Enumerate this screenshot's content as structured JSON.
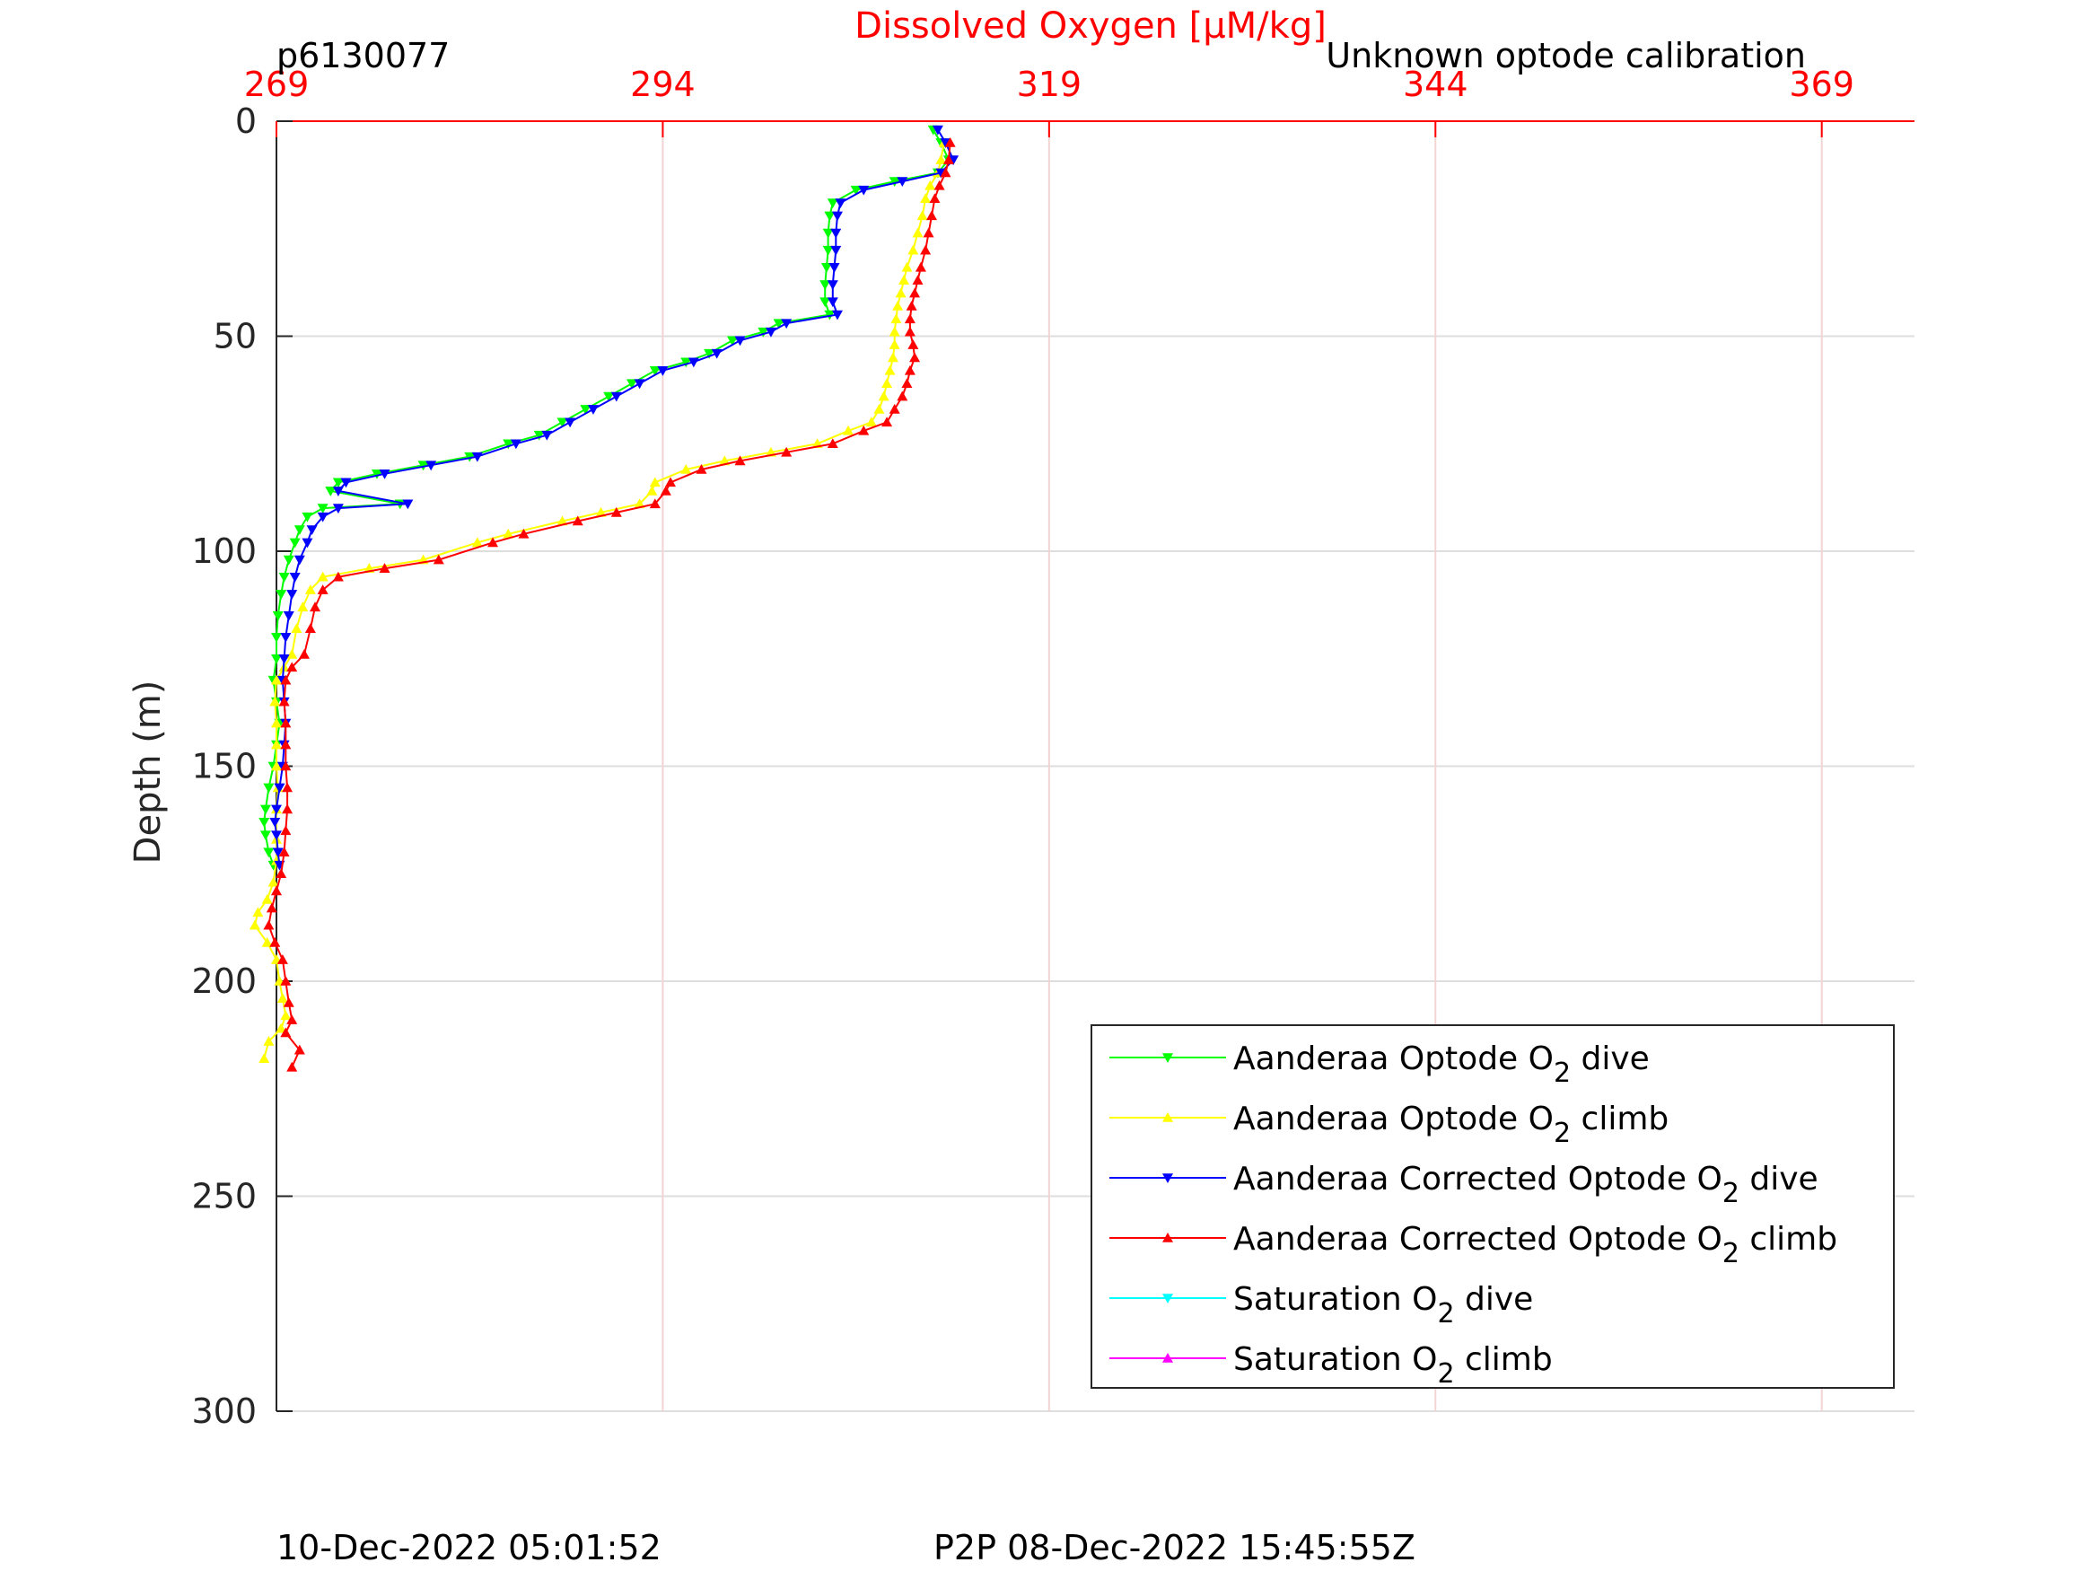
{
  "chart_data": {
    "type": "line",
    "title": "Dissolved Oxygen [μM/kg]",
    "top_left_label": "p6130077",
    "top_right_label": "Unknown optode calibration",
    "ylabel": "Depth (m)",
    "xlabel": "",
    "x_axis_position": "top",
    "y_reversed": true,
    "xlim": [
      269,
      375
    ],
    "ylim": [
      0,
      300
    ],
    "xticks": [
      269,
      294,
      319,
      344,
      369
    ],
    "yticks": [
      0,
      50,
      100,
      150,
      200,
      250,
      300
    ],
    "grid": true,
    "legend_position": "bottom-right",
    "series": [
      {
        "name": "Aanderaa Optode O2 dive",
        "legend_main": "Aanderaa Optode O",
        "legend_sub": "2",
        "legend_tail": " dive",
        "color": "#00ff00",
        "marker": "triangle-down",
        "points": [
          [
            311.5,
            2
          ],
          [
            312.0,
            5
          ],
          [
            312.5,
            9
          ],
          [
            311.8,
            12
          ],
          [
            309.0,
            14
          ],
          [
            306.5,
            16
          ],
          [
            305.0,
            19
          ],
          [
            304.8,
            22
          ],
          [
            304.7,
            26
          ],
          [
            304.7,
            30
          ],
          [
            304.6,
            34
          ],
          [
            304.5,
            38
          ],
          [
            304.5,
            42
          ],
          [
            304.8,
            45
          ],
          [
            301.5,
            47
          ],
          [
            300.5,
            49
          ],
          [
            298.5,
            51
          ],
          [
            297.0,
            54
          ],
          [
            295.5,
            56
          ],
          [
            293.5,
            58
          ],
          [
            292.0,
            61
          ],
          [
            290.5,
            64
          ],
          [
            289.0,
            67
          ],
          [
            287.5,
            70
          ],
          [
            286.0,
            73
          ],
          [
            284.0,
            75
          ],
          [
            281.5,
            78
          ],
          [
            278.5,
            80
          ],
          [
            275.5,
            82
          ],
          [
            273.0,
            84
          ],
          [
            272.5,
            86
          ],
          [
            277.0,
            89
          ],
          [
            272.0,
            90
          ],
          [
            271.0,
            92
          ],
          [
            270.5,
            95
          ],
          [
            270.2,
            98
          ],
          [
            269.8,
            102
          ],
          [
            269.5,
            106
          ],
          [
            269.3,
            110
          ],
          [
            269.1,
            115
          ],
          [
            269.0,
            120
          ],
          [
            269.0,
            125
          ],
          [
            268.8,
            130
          ],
          [
            269.0,
            135
          ],
          [
            269.2,
            140
          ],
          [
            269.0,
            145
          ],
          [
            268.8,
            150
          ],
          [
            268.5,
            155
          ],
          [
            268.3,
            160
          ],
          [
            268.2,
            163
          ],
          [
            268.3,
            166
          ],
          [
            268.5,
            170
          ],
          [
            268.8,
            173
          ]
        ]
      },
      {
        "name": "Aanderaa Optode O2 climb",
        "legend_main": "Aanderaa Optode O",
        "legend_sub": "2",
        "legend_tail": " climb",
        "color": "#ffff00",
        "marker": "triangle-up",
        "points": [
          [
            268.2,
            218
          ],
          [
            268.5,
            214
          ],
          [
            269.3,
            211
          ],
          [
            269.6,
            208
          ],
          [
            269.4,
            204
          ],
          [
            269.2,
            200
          ],
          [
            269.0,
            195
          ],
          [
            268.4,
            191
          ],
          [
            267.6,
            187
          ],
          [
            267.8,
            184
          ],
          [
            268.4,
            181
          ],
          [
            268.8,
            177
          ],
          [
            269.0,
            172
          ],
          [
            269.0,
            167
          ],
          [
            269.0,
            160
          ],
          [
            269.1,
            155
          ],
          [
            269.0,
            150
          ],
          [
            269.0,
            145
          ],
          [
            269.0,
            140
          ],
          [
            268.9,
            135
          ],
          [
            269.0,
            130
          ],
          [
            269.5,
            127
          ],
          [
            270.0,
            124
          ],
          [
            270.3,
            118
          ],
          [
            270.7,
            113
          ],
          [
            271.2,
            109
          ],
          [
            272.0,
            106
          ],
          [
            275.0,
            104
          ],
          [
            278.5,
            102
          ],
          [
            282.0,
            98
          ],
          [
            284.0,
            96
          ],
          [
            287.5,
            93
          ],
          [
            290.0,
            91
          ],
          [
            292.5,
            89
          ],
          [
            293.3,
            86
          ],
          [
            293.5,
            84
          ],
          [
            295.5,
            81
          ],
          [
            298.0,
            79
          ],
          [
            301.0,
            77
          ],
          [
            304.0,
            75
          ],
          [
            306.0,
            72
          ],
          [
            307.5,
            70
          ],
          [
            308.0,
            67
          ],
          [
            308.3,
            64
          ],
          [
            308.5,
            61
          ],
          [
            308.7,
            58
          ],
          [
            308.9,
            55
          ],
          [
            309.0,
            52
          ],
          [
            309.0,
            49
          ],
          [
            309.1,
            46
          ],
          [
            309.2,
            43
          ],
          [
            309.4,
            40
          ],
          [
            309.6,
            37
          ],
          [
            309.8,
            34
          ],
          [
            310.2,
            30
          ],
          [
            310.5,
            26
          ],
          [
            310.8,
            22
          ],
          [
            311.0,
            18
          ],
          [
            311.3,
            15
          ],
          [
            311.8,
            12
          ],
          [
            312.0,
            9
          ],
          [
            312.2,
            5
          ]
        ]
      },
      {
        "name": "Aanderaa Corrected Optode O2 dive",
        "legend_main": "Aanderaa Corrected Optode O",
        "legend_sub": "2",
        "legend_tail": " dive",
        "color": "#0000ff",
        "marker": "triangle-down",
        "points": [
          [
            311.8,
            2
          ],
          [
            312.3,
            5
          ],
          [
            312.8,
            9
          ],
          [
            312.0,
            12
          ],
          [
            309.5,
            14
          ],
          [
            307.0,
            16
          ],
          [
            305.5,
            19
          ],
          [
            305.3,
            22
          ],
          [
            305.2,
            26
          ],
          [
            305.2,
            30
          ],
          [
            305.1,
            34
          ],
          [
            305.0,
            38
          ],
          [
            305.0,
            42
          ],
          [
            305.3,
            45
          ],
          [
            302.0,
            47
          ],
          [
            301.0,
            49
          ],
          [
            299.0,
            51
          ],
          [
            297.5,
            54
          ],
          [
            296.0,
            56
          ],
          [
            294.0,
            58
          ],
          [
            292.5,
            61
          ],
          [
            291.0,
            64
          ],
          [
            289.5,
            67
          ],
          [
            288.0,
            70
          ],
          [
            286.5,
            73
          ],
          [
            284.5,
            75
          ],
          [
            282.0,
            78
          ],
          [
            279.0,
            80
          ],
          [
            276.0,
            82
          ],
          [
            273.5,
            84
          ],
          [
            273.0,
            86
          ],
          [
            277.5,
            89
          ],
          [
            273.0,
            90
          ],
          [
            272.0,
            92
          ],
          [
            271.3,
            95
          ],
          [
            271.0,
            98
          ],
          [
            270.5,
            102
          ],
          [
            270.2,
            106
          ],
          [
            270.0,
            110
          ],
          [
            269.8,
            115
          ],
          [
            269.6,
            120
          ],
          [
            269.5,
            125
          ],
          [
            269.4,
            130
          ],
          [
            269.5,
            135
          ],
          [
            269.6,
            140
          ],
          [
            269.5,
            145
          ],
          [
            269.4,
            150
          ],
          [
            269.2,
            155
          ],
          [
            269.0,
            160
          ],
          [
            268.9,
            163
          ],
          [
            269.0,
            166
          ],
          [
            269.1,
            170
          ],
          [
            269.2,
            173
          ]
        ]
      },
      {
        "name": "Aanderaa Corrected Optode O2 climb",
        "legend_main": "Aanderaa Corrected Optode O",
        "legend_sub": "2",
        "legend_tail": " climb",
        "color": "#ff0000",
        "marker": "triangle-up",
        "points": [
          [
            270.0,
            220
          ],
          [
            270.5,
            216
          ],
          [
            269.6,
            212
          ],
          [
            270.0,
            209
          ],
          [
            269.8,
            205
          ],
          [
            269.6,
            200
          ],
          [
            269.4,
            195
          ],
          [
            268.9,
            191
          ],
          [
            268.5,
            187
          ],
          [
            268.7,
            183
          ],
          [
            269.0,
            179
          ],
          [
            269.3,
            175
          ],
          [
            269.5,
            170
          ],
          [
            269.6,
            165
          ],
          [
            269.7,
            160
          ],
          [
            269.7,
            155
          ],
          [
            269.6,
            150
          ],
          [
            269.6,
            145
          ],
          [
            269.6,
            140
          ],
          [
            269.5,
            135
          ],
          [
            269.6,
            130
          ],
          [
            270.0,
            127
          ],
          [
            270.8,
            124
          ],
          [
            271.2,
            118
          ],
          [
            271.5,
            113
          ],
          [
            272.0,
            109
          ],
          [
            273.0,
            106
          ],
          [
            276.0,
            104
          ],
          [
            279.5,
            102
          ],
          [
            283.0,
            98
          ],
          [
            285.0,
            96
          ],
          [
            288.5,
            93
          ],
          [
            291.0,
            91
          ],
          [
            293.5,
            89
          ],
          [
            294.2,
            86
          ],
          [
            294.5,
            84
          ],
          [
            296.5,
            81
          ],
          [
            299.0,
            79
          ],
          [
            302.0,
            77
          ],
          [
            305.0,
            75
          ],
          [
            307.0,
            72
          ],
          [
            308.5,
            70
          ],
          [
            309.0,
            67
          ],
          [
            309.5,
            64
          ],
          [
            309.8,
            61
          ],
          [
            310.0,
            58
          ],
          [
            310.3,
            55
          ],
          [
            310.2,
            52
          ],
          [
            310.0,
            49
          ],
          [
            310.0,
            46
          ],
          [
            310.1,
            43
          ],
          [
            310.3,
            40
          ],
          [
            310.5,
            37
          ],
          [
            310.7,
            34
          ],
          [
            311.0,
            30
          ],
          [
            311.2,
            26
          ],
          [
            311.4,
            22
          ],
          [
            311.6,
            18
          ],
          [
            311.9,
            15
          ],
          [
            312.3,
            12
          ],
          [
            312.5,
            9
          ],
          [
            312.6,
            5
          ]
        ]
      },
      {
        "name": "Saturation O2 dive",
        "legend_main": "Saturation O",
        "legend_sub": "2",
        "legend_tail": " dive",
        "color": "#00ffff",
        "marker": "triangle-down",
        "points": []
      },
      {
        "name": "Saturation O2 climb",
        "legend_main": "Saturation O",
        "legend_sub": "2",
        "legend_tail": " climb",
        "color": "#ff00ff",
        "marker": "triangle-up",
        "points": []
      }
    ]
  },
  "footer": {
    "left": "10-Dec-2022 05:01:52",
    "right": "P2P 08-Dec-2022 15:45:55Z"
  }
}
